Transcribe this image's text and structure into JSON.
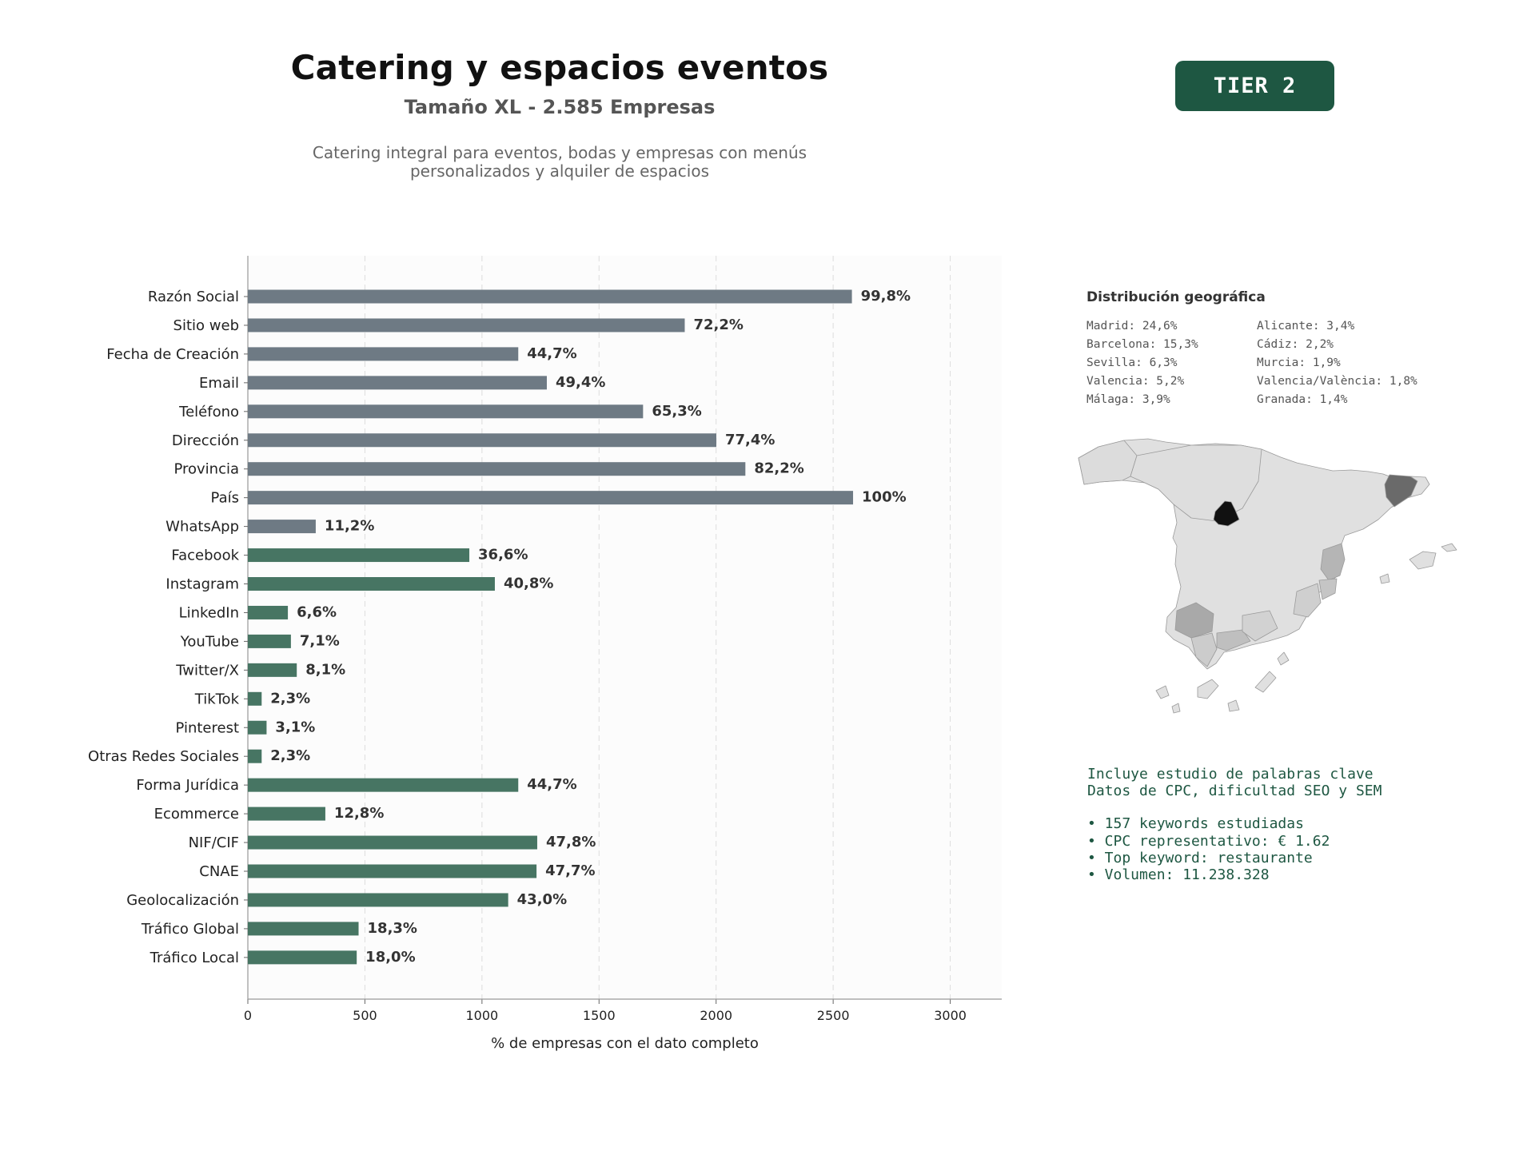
{
  "header": {
    "title": "Catering y espacios eventos",
    "subtitle": "Tamaño XL - 2.585 Empresas",
    "description": "Catering integral para eventos, bodas y empresas con menús personalizados y alquiler de espacios"
  },
  "badge": {
    "label": "TIER 2"
  },
  "colors": {
    "basic_fields": "#6e7a84",
    "extended_fields": "#477563",
    "brand": "#1e5742",
    "map_land": "#e0e0e0",
    "map_borders": "#9a9a9a"
  },
  "chart_data": {
    "type": "bar",
    "orientation": "horizontal",
    "xlabel": "% de empresas con el dato completo",
    "xlim": [
      0,
      3220
    ],
    "xticks": [
      0,
      500,
      1000,
      1500,
      2000,
      2500,
      3000
    ],
    "grid": "vertical dashed",
    "categories": [
      "Razón Social",
      "Sitio web",
      "Fecha de Creación",
      "Email",
      "Teléfono",
      "Dirección",
      "Provincia",
      "País",
      "WhatsApp",
      "Facebook",
      "Instagram",
      "LinkedIn",
      "YouTube",
      "Twitter/X",
      "TikTok",
      "Pinterest",
      "Otras Redes Sociales",
      "Forma Jurídica",
      "Ecommerce",
      "NIF/CIF",
      "CNAE",
      "Geolocalización",
      "Tráfico Global",
      "Tráfico Local"
    ],
    "values": [
      2580,
      1866,
      1155,
      1277,
      1688,
      2001,
      2125,
      2585,
      290,
      946,
      1055,
      171,
      184,
      209,
      59,
      80,
      59,
      1155,
      331,
      1236,
      1233,
      1112,
      473,
      465
    ],
    "labels": [
      "99,8%",
      "72,2%",
      "44,7%",
      "49,4%",
      "65,3%",
      "77,4%",
      "82,2%",
      "100%",
      "11,2%",
      "36,6%",
      "40,8%",
      "6,6%",
      "7,1%",
      "8,1%",
      "2,3%",
      "3,1%",
      "2,3%",
      "44,7%",
      "12,8%",
      "47,8%",
      "47,7%",
      "43,0%",
      "18,3%",
      "18,0%"
    ],
    "groups": [
      "basic",
      "basic",
      "basic",
      "basic",
      "basic",
      "basic",
      "basic",
      "basic",
      "basic",
      "extended",
      "extended",
      "extended",
      "extended",
      "extended",
      "extended",
      "extended",
      "extended",
      "extended",
      "extended",
      "extended",
      "extended",
      "extended",
      "extended",
      "extended"
    ]
  },
  "geo": {
    "title": "Distribución geográfica",
    "left": [
      "Madrid: 24,6%",
      "Barcelona: 15,3%",
      "Sevilla: 6,3%",
      "Valencia: 5,2%",
      "Málaga: 3,9%"
    ],
    "right": [
      "Alicante: 3,4%",
      "Cádiz: 2,2%",
      "Murcia: 1,9%",
      "Valencia/València: 1,8%",
      "Granada: 1,4%"
    ],
    "map_shading": {
      "Madrid": "#111111",
      "Barcelona": "#6a6a6a",
      "Sevilla": "#a9a9a9",
      "Valencia": "#b5b5b5",
      "Málaga": "#bfbfbf",
      "Alicante": "#c5c5c5",
      "Cádiz": "#cccccc",
      "Murcia": "#cfcfcf",
      "Granada": "#d2d2d2"
    }
  },
  "keywords": {
    "line1": "Incluye estudio de palabras clave",
    "line2": "Datos de CPC, dificultad SEO y SEM",
    "bullets": [
      "• 157 keywords estudiadas",
      "• CPC representativo: € 1.62",
      "• Top keyword: restaurante",
      "• Volumen: 11.238.328"
    ]
  }
}
